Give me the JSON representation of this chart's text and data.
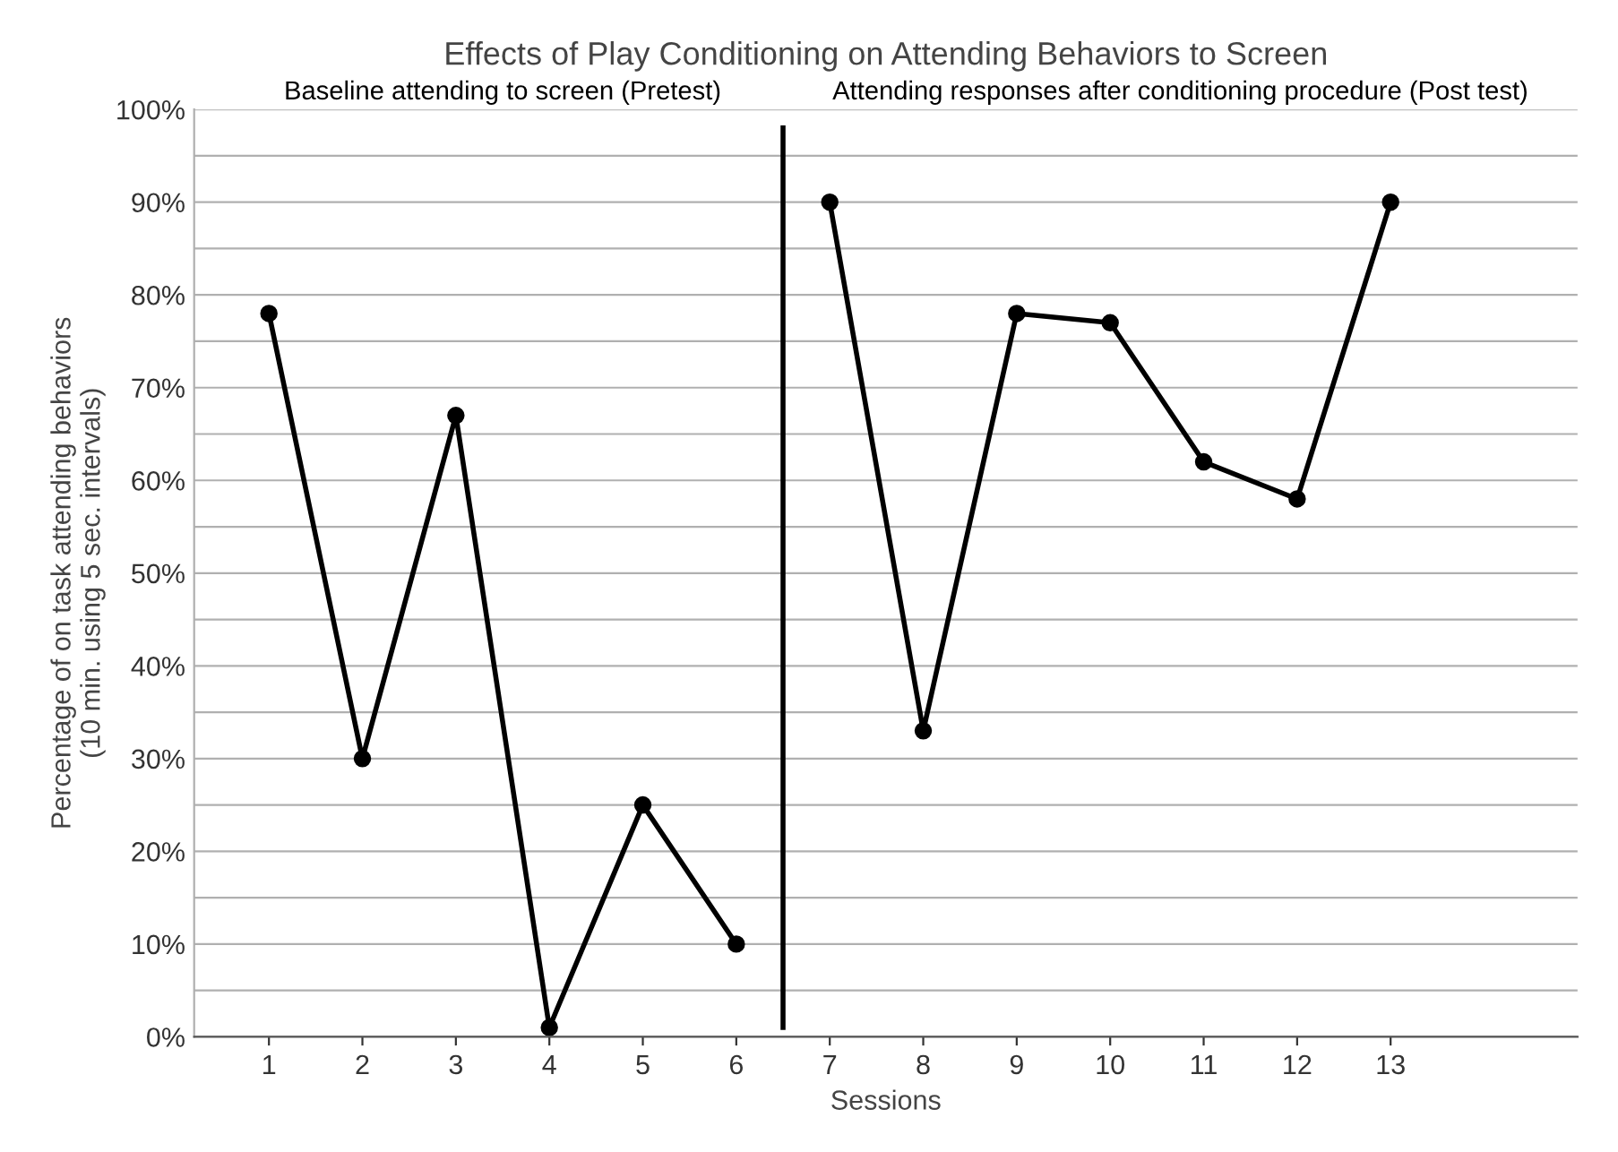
{
  "chart_data": {
    "type": "line",
    "title": "Effects of Play Conditioning on Attending Behaviors to Screen",
    "xlabel": "Sessions",
    "ylabel": "Percentage of on task attending behaviors\n(10 min. using 5 sec. intervals)",
    "series": [
      {
        "color": "#000000",
        "x": [
          1,
          2,
          3,
          4,
          5,
          6
        ],
        "values": [
          78,
          30,
          67,
          1,
          25,
          10
        ]
      },
      {
        "color": "#000000",
        "x": [
          7,
          8,
          9,
          10,
          11,
          12,
          13
        ],
        "values": [
          90,
          33,
          78,
          77,
          62,
          58,
          90
        ]
      }
    ],
    "xlim": [
      0.2,
      15
    ],
    "xticks": [
      1,
      2,
      3,
      4,
      5,
      6,
      7,
      8,
      9,
      10,
      11,
      12,
      13
    ],
    "ylim": [
      0,
      100
    ],
    "yticks": [
      {
        "value": 0,
        "label": "0%"
      },
      {
        "value": 5,
        "label": null
      },
      {
        "value": 10,
        "label": "10%"
      },
      {
        "value": 15,
        "label": null
      },
      {
        "value": 20,
        "label": "20%"
      },
      {
        "value": 25,
        "label": null
      },
      {
        "value": 30,
        "label": "30%"
      },
      {
        "value": 35,
        "label": null
      },
      {
        "value": 40,
        "label": "40%"
      },
      {
        "value": 45,
        "label": null
      },
      {
        "value": 50,
        "label": "50%"
      },
      {
        "value": 55,
        "label": null
      },
      {
        "value": 60,
        "label": "60%"
      },
      {
        "value": 65,
        "label": null
      },
      {
        "value": 70,
        "label": "70%"
      },
      {
        "value": 75,
        "label": null
      },
      {
        "value": 80,
        "label": "80%"
      },
      {
        "value": 85,
        "label": null
      },
      {
        "value": 90,
        "label": "90%"
      },
      {
        "value": 95,
        "label": null
      },
      {
        "value": 100,
        "label": "100%"
      }
    ],
    "ref_lines": [
      {
        "axis": "x",
        "value": 6.5,
        "color": "#000000"
      }
    ],
    "annotations": [
      "Baseline attending to screen (Pretest)",
      "Attending responses after conditioning procedure (Post test)"
    ],
    "grid": "y",
    "marker": "circle",
    "line_style": "solid",
    "legend": false
  }
}
